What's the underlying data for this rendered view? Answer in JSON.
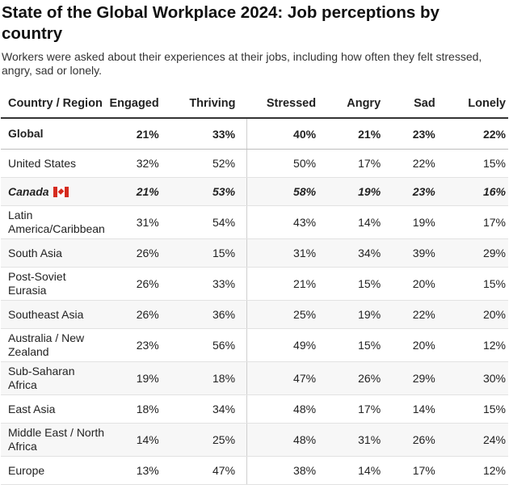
{
  "header": {
    "title": "State of the Global Workplace 2024: Job perceptions by country",
    "subtitle": "Workers were asked about their experiences at their jobs, including how often they felt stressed, angry, sad or lonely."
  },
  "flag_icon": "canada-flag-icon",
  "chart_data": {
    "type": "table",
    "title": "State of the Global Workplace 2024: Job perceptions by country",
    "subtitle": "Workers were asked about their experiences at their jobs, including how often they felt stressed, angry, sad or lonely.",
    "columns": [
      "Country / Region",
      "Engaged",
      "Thriving",
      "Stressed",
      "Angry",
      "Sad",
      "Lonely"
    ],
    "rows": [
      [
        "Global",
        "21%",
        "33%",
        "40%",
        "21%",
        "23%",
        "22%"
      ],
      [
        "United States",
        "32%",
        "52%",
        "50%",
        "17%",
        "22%",
        "15%"
      ],
      [
        "Canada",
        "21%",
        "53%",
        "58%",
        "19%",
        "23%",
        "16%"
      ],
      [
        "Latin America/Caribbean",
        "31%",
        "54%",
        "43%",
        "14%",
        "19%",
        "17%"
      ],
      [
        "South Asia",
        "26%",
        "15%",
        "31%",
        "34%",
        "39%",
        "29%"
      ],
      [
        "Post-Soviet Eurasia",
        "26%",
        "33%",
        "21%",
        "15%",
        "20%",
        "15%"
      ],
      [
        "Southeast Asia",
        "26%",
        "36%",
        "25%",
        "19%",
        "22%",
        "20%"
      ],
      [
        "Australia / New Zealand",
        "23%",
        "56%",
        "49%",
        "15%",
        "20%",
        "12%"
      ],
      [
        "Sub-Saharan Africa",
        "19%",
        "18%",
        "47%",
        "26%",
        "29%",
        "30%"
      ],
      [
        "East Asia",
        "18%",
        "34%",
        "48%",
        "17%",
        "14%",
        "15%"
      ],
      [
        "Middle East / North Africa",
        "14%",
        "25%",
        "48%",
        "31%",
        "26%",
        "24%"
      ],
      [
        "Europe",
        "13%",
        "47%",
        "38%",
        "14%",
        "17%",
        "12%"
      ]
    ]
  }
}
